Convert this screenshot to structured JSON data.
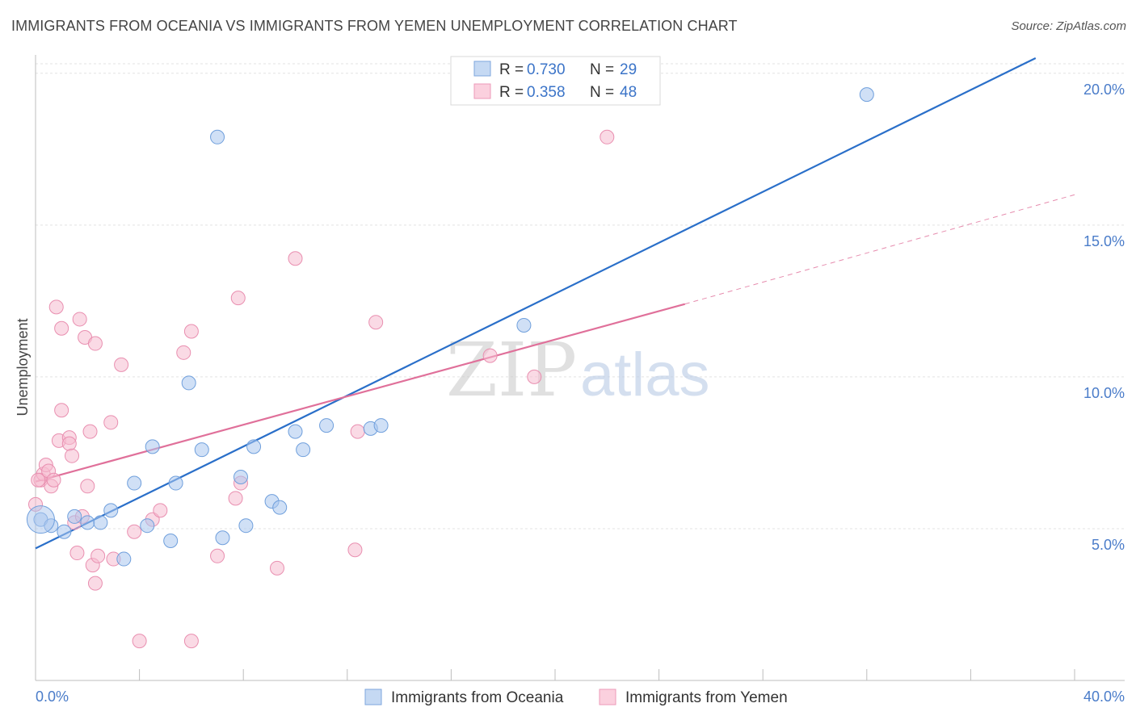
{
  "title": "IMMIGRANTS FROM OCEANIA VS IMMIGRANTS FROM YEMEN UNEMPLOYMENT CORRELATION CHART",
  "source": "Source: ZipAtlas.com",
  "watermark": {
    "part1": "ZIP",
    "part2": "atlas"
  },
  "chart_data": {
    "type": "scatter",
    "title": "IMMIGRANTS FROM OCEANIA VS IMMIGRANTS FROM YEMEN UNEMPLOYMENT CORRELATION CHART",
    "xlabel": "",
    "ylabel": "Unemployment",
    "xlim": [
      0,
      40
    ],
    "ylim": [
      0,
      20.5
    ],
    "x_tick_labels": {
      "min": "0.0%",
      "max": "40.0%"
    },
    "y_ticks": [
      {
        "value": 5,
        "label": "5.0%"
      },
      {
        "value": 10,
        "label": "10.0%"
      },
      {
        "value": 15,
        "label": "15.0%"
      },
      {
        "value": 20,
        "label": "20.0%"
      }
    ],
    "grid": true,
    "legend_placement": "top-center",
    "series": [
      {
        "name": "Immigrants from Oceania",
        "color": "#a9c6ee",
        "stroke": "#6f9fdc",
        "line_color": "#2a6fc9",
        "R": "0.730",
        "N": "29",
        "trend": {
          "x0": 0,
          "y0": 4.35,
          "x1": 38.5,
          "y1": 20.5,
          "dashed_to": null
        },
        "points": [
          [
            0.2,
            5.3
          ],
          [
            0.6,
            5.1
          ],
          [
            1.1,
            4.9
          ],
          [
            1.5,
            5.4
          ],
          [
            2.0,
            5.2
          ],
          [
            2.5,
            5.2
          ],
          [
            2.9,
            5.6
          ],
          [
            3.4,
            4.0
          ],
          [
            3.8,
            6.5
          ],
          [
            4.3,
            5.1
          ],
          [
            4.5,
            7.7
          ],
          [
            5.2,
            4.6
          ],
          [
            5.4,
            6.5
          ],
          [
            5.9,
            9.8
          ],
          [
            6.4,
            7.6
          ],
          [
            7.0,
            17.9
          ],
          [
            7.2,
            4.7
          ],
          [
            7.9,
            6.7
          ],
          [
            8.1,
            5.1
          ],
          [
            8.4,
            7.7
          ],
          [
            9.1,
            5.9
          ],
          [
            9.4,
            5.7
          ],
          [
            10.0,
            8.2
          ],
          [
            10.3,
            7.6
          ],
          [
            11.2,
            8.4
          ],
          [
            12.9,
            8.3
          ],
          [
            13.3,
            8.4
          ],
          [
            18.8,
            11.7
          ],
          [
            32.0,
            19.3
          ]
        ]
      },
      {
        "name": "Immigrants from Yemen",
        "color": "#f6bcd0",
        "stroke": "#e98fb0",
        "line_color": "#e0709a",
        "R": "0.358",
        "N": "48",
        "trend": {
          "x0": 0,
          "y0": 6.55,
          "x1": 25.0,
          "y1": 12.4,
          "dashed_to": {
            "x": 40,
            "y": 16.0
          }
        },
        "points": [
          [
            0.0,
            5.8
          ],
          [
            0.2,
            6.6
          ],
          [
            0.3,
            6.8
          ],
          [
            0.4,
            7.1
          ],
          [
            0.5,
            6.9
          ],
          [
            0.6,
            6.4
          ],
          [
            0.7,
            6.6
          ],
          [
            0.8,
            12.3
          ],
          [
            0.9,
            7.9
          ],
          [
            1.0,
            8.9
          ],
          [
            1.0,
            11.6
          ],
          [
            1.3,
            8.0
          ],
          [
            1.3,
            7.8
          ],
          [
            1.4,
            7.4
          ],
          [
            1.5,
            5.2
          ],
          [
            1.6,
            4.2
          ],
          [
            1.7,
            11.9
          ],
          [
            1.8,
            5.4
          ],
          [
            1.9,
            11.3
          ],
          [
            2.0,
            6.4
          ],
          [
            2.1,
            8.2
          ],
          [
            2.2,
            3.8
          ],
          [
            2.3,
            11.1
          ],
          [
            2.3,
            3.2
          ],
          [
            2.4,
            4.1
          ],
          [
            2.9,
            8.5
          ],
          [
            3.0,
            4.0
          ],
          [
            3.3,
            10.4
          ],
          [
            3.8,
            4.9
          ],
          [
            4.0,
            1.3
          ],
          [
            4.5,
            5.3
          ],
          [
            4.8,
            5.6
          ],
          [
            5.7,
            10.8
          ],
          [
            6.0,
            11.5
          ],
          [
            6.0,
            1.3
          ],
          [
            7.0,
            4.1
          ],
          [
            7.7,
            6.0
          ],
          [
            7.8,
            12.6
          ],
          [
            7.9,
            6.5
          ],
          [
            9.3,
            3.7
          ],
          [
            10.0,
            13.9
          ],
          [
            12.3,
            4.3
          ],
          [
            12.4,
            8.2
          ],
          [
            13.1,
            11.8
          ],
          [
            17.5,
            10.7
          ],
          [
            19.2,
            10.0
          ],
          [
            22.0,
            17.9
          ],
          [
            0.1,
            6.6
          ]
        ]
      }
    ]
  }
}
